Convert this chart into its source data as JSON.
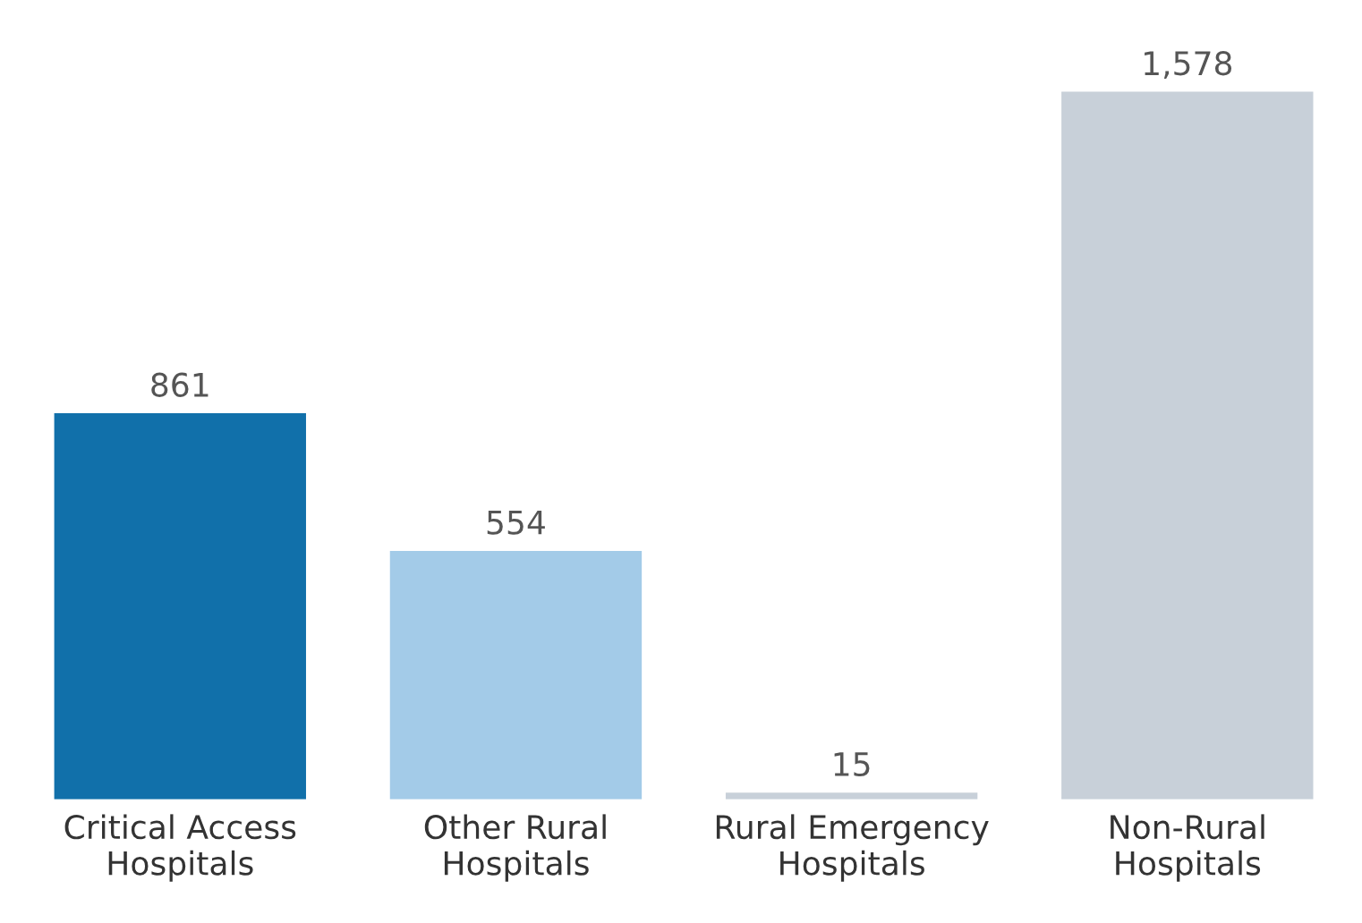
{
  "chart_data": {
    "type": "bar",
    "categories": [
      "Critical Access\nHospitals",
      "Other Rural\nHospitals",
      "Rural Emergency\nHospitals",
      "Non-Rural\nHospitals"
    ],
    "values": [
      861,
      554,
      15,
      1578
    ],
    "colors": [
      "#1170aa",
      "#a3cbe8",
      "#c8d0d9",
      "#c8d0d9"
    ],
    "value_labels": [
      "861",
      "554",
      "15",
      "1,578"
    ],
    "grid": false,
    "legend": false
  }
}
